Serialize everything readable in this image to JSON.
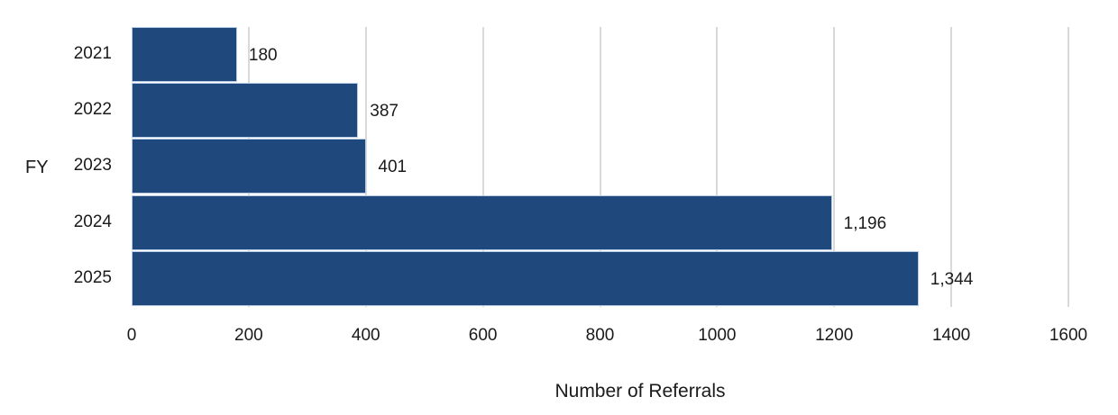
{
  "chart_data": {
    "type": "bar",
    "orientation": "horizontal",
    "title": "",
    "xlabel": "Number of Referrals",
    "ylabel": "FY",
    "categories": [
      "2021",
      "2022",
      "2023",
      "2024",
      "2025"
    ],
    "values": [
      180,
      387,
      401,
      1196,
      1344
    ],
    "value_labels": [
      "180",
      "387",
      "401",
      "1,196",
      "1,344"
    ],
    "xlim": [
      0,
      1600
    ],
    "xticks": [
      0,
      200,
      400,
      600,
      800,
      1000,
      1200,
      1400,
      1600
    ],
    "xtick_labels": [
      "0",
      "200",
      "400",
      "600",
      "800",
      "1000",
      "1200",
      "1400",
      "1600"
    ],
    "grid": "vertical",
    "legend": null,
    "colors": {
      "bar": "#1f497d",
      "bar_edge": "#b8cce4",
      "grid": "#d9d9d9"
    }
  }
}
